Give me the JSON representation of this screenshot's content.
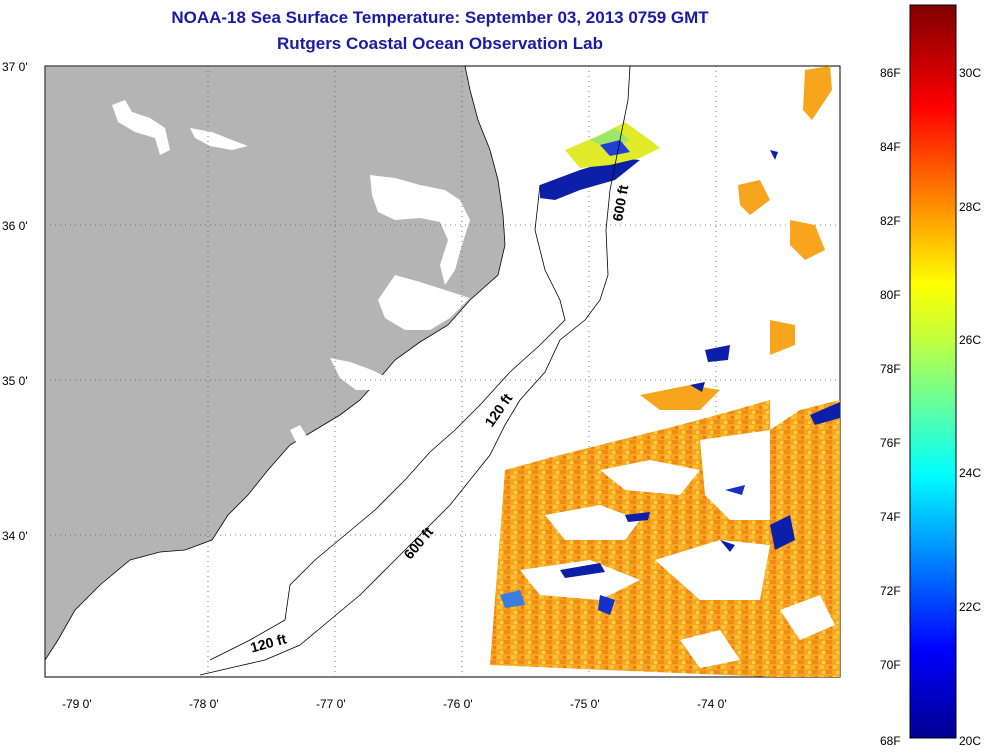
{
  "title": "NOAA-18 Sea Surface Temperature:  September 03, 2013 0759 GMT",
  "subtitle": "Rutgers Coastal Ocean Observation Lab",
  "map": {
    "lat_labels": [
      "37 0'",
      "36 0'",
      "35 0'",
      "34 0'"
    ],
    "lon_labels": [
      "-79 0'",
      "-78 0'",
      "-77 0'",
      "-76 0'",
      "-75 0'",
      "-74 0'"
    ],
    "lat_range": [
      33.1,
      37.0
    ],
    "lon_range": [
      -79.3,
      -73.3
    ],
    "contour_labels": {
      "c600_north": "600 ft",
      "c120_mid": "120 ft",
      "c600_mid": "600 ft",
      "c120_south": "120 ft"
    },
    "colors": {
      "land": "#b4b4b4",
      "ocean": "#ffffff",
      "sst_warm": "#f4a020",
      "sst_cold": "#0b1fa8"
    }
  },
  "colorbar": {
    "fahrenheit_labels": [
      "86F",
      "84F",
      "82F",
      "80F",
      "78F",
      "76F",
      "74F",
      "72F",
      "70F",
      "68F"
    ],
    "celsius_labels": [
      "30C",
      "28C",
      "26C",
      "24C",
      "22C",
      "20C"
    ],
    "range_c": [
      20,
      31
    ],
    "colormap": "jet"
  }
}
